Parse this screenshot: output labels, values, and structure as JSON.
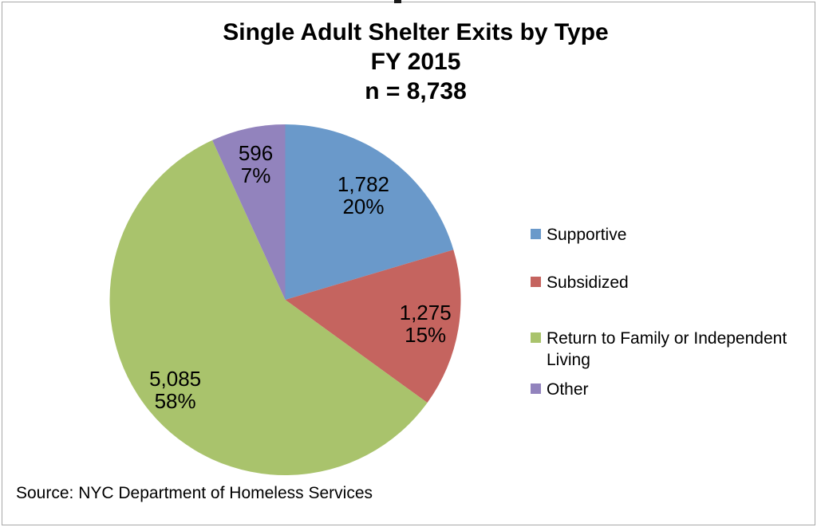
{
  "chart_data": {
    "type": "pie",
    "title_lines": [
      "Single Adult Shelter Exits by Type",
      "FY 2015",
      "n = 8,738"
    ],
    "total": 8738,
    "start_angle_deg": 0,
    "direction": "clockwise",
    "legend_position": "right",
    "slices": [
      {
        "label": "Supportive",
        "value": 1782,
        "value_label": "1,782",
        "percent_label": "20%",
        "color": "#6a99ca"
      },
      {
        "label": "Subsidized",
        "value": 1275,
        "value_label": "1,275",
        "percent_label": "15%",
        "color": "#c5645f"
      },
      {
        "label": "Return to Family or Independent Living",
        "value": 5085,
        "value_label": "5,085",
        "percent_label": "58%",
        "color": "#a9c36c"
      },
      {
        "label": "Other",
        "value": 596,
        "value_label": "596",
        "percent_label": "7%",
        "color": "#9283bd"
      }
    ]
  },
  "source_note": "Source: NYC Department of Homeless Services"
}
